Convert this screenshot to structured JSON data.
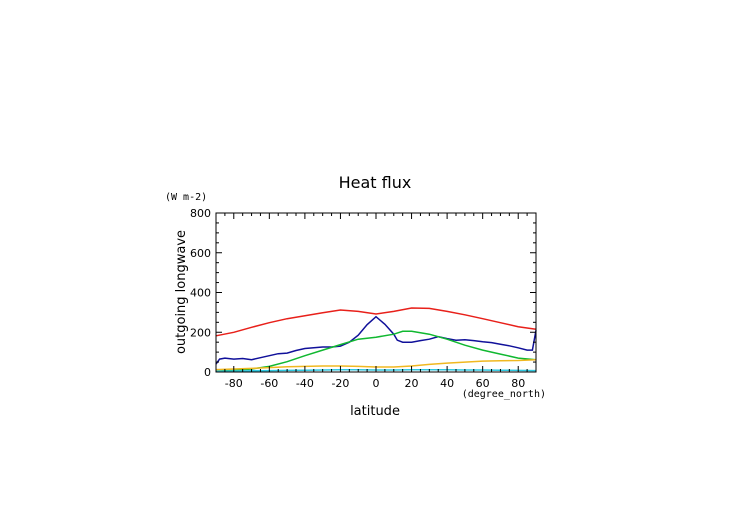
{
  "chart_data": {
    "type": "line",
    "title": "Heat flux",
    "xlabel": "latitude",
    "x_units": "(degree_north)",
    "ylabel": "outgoing longwave",
    "y_units": "(W m-2)",
    "xlim": [
      -90,
      90
    ],
    "ylim": [
      0,
      800
    ],
    "x_ticks": [
      -80,
      -60,
      -40,
      -20,
      0,
      20,
      40,
      60,
      80
    ],
    "y_ticks": [
      0,
      200,
      400,
      600,
      800
    ],
    "grid": false,
    "series": [
      {
        "color": "#e8201a",
        "x": [
          -90,
          -80,
          -70,
          -60,
          -50,
          -40,
          -30,
          -20,
          -10,
          0,
          10,
          20,
          30,
          40,
          50,
          60,
          70,
          80,
          90
        ],
        "y": [
          182,
          200,
          225,
          248,
          268,
          283,
          298,
          312,
          305,
          292,
          305,
          322,
          320,
          305,
          288,
          268,
          248,
          228,
          215
        ]
      },
      {
        "color": "#10109a",
        "x": [
          -90,
          -88,
          -85,
          -80,
          -75,
          -70,
          -65,
          -60,
          -55,
          -50,
          -45,
          -40,
          -35,
          -30,
          -25,
          -20,
          -15,
          -10,
          -5,
          0,
          5,
          10,
          12,
          15,
          20,
          25,
          30,
          35,
          40,
          45,
          50,
          55,
          60,
          65,
          70,
          75,
          80,
          85,
          88,
          90
        ],
        "y": [
          40,
          65,
          70,
          65,
          68,
          62,
          72,
          82,
          92,
          95,
          108,
          118,
          122,
          126,
          126,
          130,
          150,
          185,
          238,
          278,
          240,
          190,
          160,
          150,
          150,
          158,
          165,
          178,
          168,
          160,
          162,
          158,
          152,
          148,
          140,
          132,
          122,
          110,
          110,
          210
        ]
      },
      {
        "color": "#10b830",
        "x": [
          -90,
          -80,
          -70,
          -60,
          -50,
          -40,
          -30,
          -20,
          -10,
          0,
          10,
          15,
          20,
          30,
          40,
          50,
          60,
          70,
          80,
          90
        ],
        "y": [
          5,
          8,
          15,
          28,
          52,
          82,
          110,
          138,
          165,
          175,
          190,
          205,
          205,
          190,
          165,
          135,
          110,
          90,
          70,
          62
        ]
      },
      {
        "color": "#f0b820",
        "x": [
          -90,
          -80,
          -70,
          -60,
          -50,
          -40,
          -30,
          -20,
          -10,
          0,
          10,
          20,
          30,
          40,
          50,
          60,
          70,
          80,
          90
        ],
        "y": [
          12,
          15,
          18,
          22,
          26,
          28,
          30,
          30,
          28,
          25,
          25,
          30,
          38,
          45,
          50,
          55,
          57,
          58,
          62
        ]
      },
      {
        "color": "#30c8e0",
        "x": [
          -90,
          -80,
          -70,
          -60,
          -50,
          -40,
          -30,
          -20,
          -10,
          0,
          10,
          20,
          30,
          40,
          50,
          60,
          70,
          80,
          90
        ],
        "y": [
          4,
          5,
          6,
          7,
          8,
          9,
          10,
          11,
          11,
          10,
          10,
          11,
          11,
          11,
          10,
          10,
          9,
          8,
          7
        ]
      }
    ]
  }
}
